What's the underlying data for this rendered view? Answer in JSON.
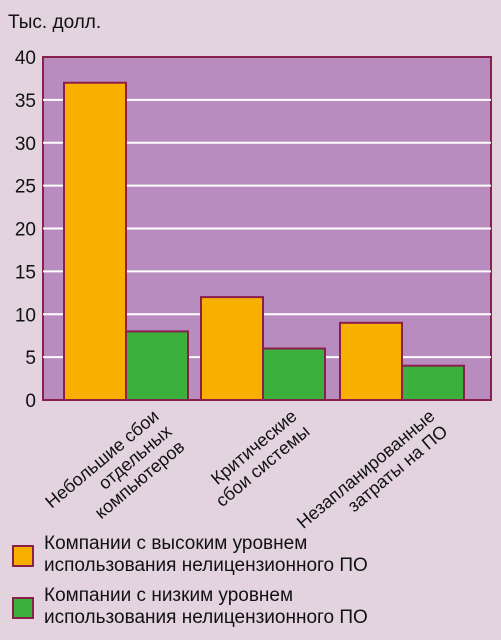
{
  "chart_data": {
    "type": "bar",
    "title": "",
    "ylabel": "Тыс. долл.",
    "xlabel": "",
    "ylim": [
      0,
      40
    ],
    "yticks": [
      0,
      5,
      10,
      15,
      20,
      25,
      30,
      35,
      40
    ],
    "categories": [
      "Небольшие сбои\nотдельных\nкомпьютеров",
      "Критические\nсбои системы",
      "Незапланированные\nзатраты на ПО"
    ],
    "series": [
      {
        "name": "Компании с высоким уровнем\nиспользования нелицензионного ПО",
        "color": "#f7b000",
        "values": [
          37,
          12,
          9
        ]
      },
      {
        "name": "Компании с низким уровнем\nиспользования нелицензионного ПО",
        "color": "#3cb03c",
        "values": [
          8,
          6,
          4
        ]
      }
    ],
    "plot_background": "#b88cbe",
    "border_color": "#8a1f4c",
    "grid": true,
    "legend_position": "bottom"
  }
}
